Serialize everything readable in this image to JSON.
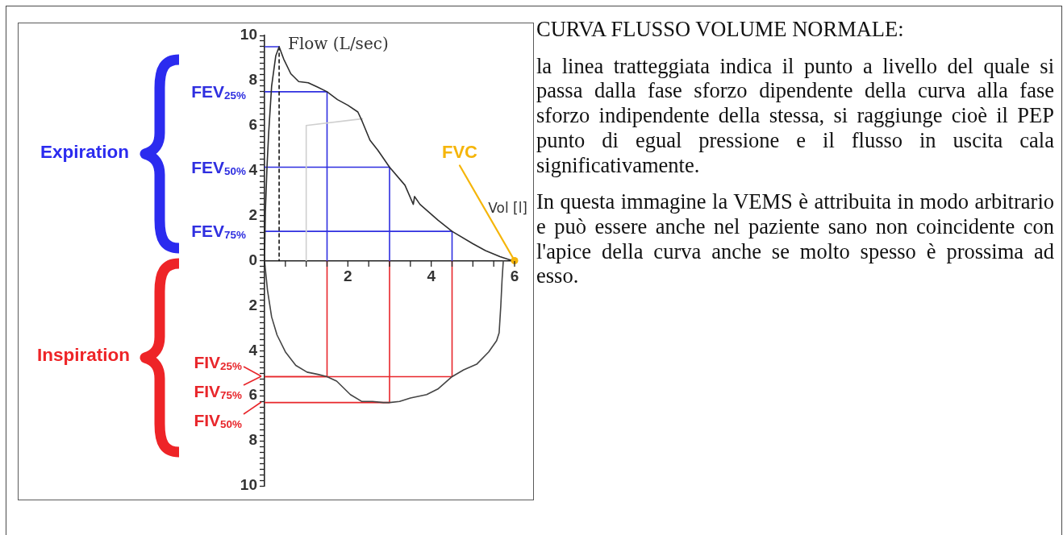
{
  "chart_data": {
    "type": "line",
    "title": "CURVA FLUSSO VOLUME NORMALE:",
    "xlabel": "Vol [l]",
    "ylabel": "Flow (L/sec)",
    "annotations": [
      "Expiration",
      "Inspiration",
      "la linea tratteggiata indica il punto a livello del quale si passa dalla fase sforzo dipendente della curva alla fase sforzo indipendente della stessa, si raggiunge cioè il PEP punto di egual pressione e il flusso in uscita cala significativamente.",
      "In questa immagine la VEMS è attribuita in modo arbitrario e può essere anche nel paziente sano non coincidente con l'apice della curva anche se molto spesso è prossima ad esso.",
      {
        "text": "FVC",
        "x": 6,
        "y": 0
      },
      "FIV$_{25%}$",
      "FIV$_{75%}$",
      "FIV$_{50%}$"
    ],
    "xlim": [
      0,
      6
    ],
    "xticks": [
      {
        "value": 0,
        "label": null
      },
      {
        "value": 0.5,
        "label": null
      },
      {
        "value": 1,
        "label": null
      },
      {
        "value": 1.5,
        "label": null
      },
      2,
      {
        "value": 2.5,
        "label": null
      },
      {
        "value": 3,
        "label": null
      },
      {
        "value": 3.5,
        "label": null
      },
      4,
      {
        "value": 4.5,
        "label": null
      },
      {
        "value": 5,
        "label": null
      },
      {
        "value": 5.5,
        "label": null
      },
      6
    ],
    "ylim": [
      -10,
      10
    ],
    "yticks": [
      {
        "value": -10,
        "label": "10"
      },
      {
        "value": -9.75,
        "label": null
      },
      {
        "value": -9.5,
        "label": null
      },
      {
        "value": -9.25,
        "label": null
      },
      {
        "value": -9,
        "label": null
      },
      {
        "value": -8.75,
        "label": null
      },
      {
        "value": -8.5,
        "label": null
      },
      {
        "value": -8.25,
        "label": null
      },
      {
        "value": -8,
        "label": "8"
      },
      {
        "value": -7.75,
        "label": null
      },
      {
        "value": -7.5,
        "label": null
      },
      {
        "value": -7.25,
        "label": null
      },
      {
        "value": -7,
        "label": null
      },
      {
        "value": -6.75,
        "label": null
      },
      {
        "value": -6.5,
        "label": null
      },
      {
        "value": -6.25,
        "label": null
      },
      {
        "value": -6,
        "label": "6"
      },
      {
        "value": -5.75,
        "label": null
      },
      {
        "value": -5.5,
        "label": null
      },
      {
        "value": -5.25,
        "label": null
      },
      {
        "value": -5,
        "label": null
      },
      {
        "value": -4.75,
        "label": null
      },
      {
        "value": -4.5,
        "label": null
      },
      {
        "value": -4.25,
        "label": null
      },
      {
        "value": -4,
        "label": "4"
      },
      {
        "value": -3.75,
        "label": null
      },
      {
        "value": -3.5,
        "label": null
      },
      {
        "value": -3.25,
        "label": null
      },
      {
        "value": -3,
        "label": null
      },
      {
        "value": -2.75,
        "label": null
      },
      {
        "value": -2.5,
        "label": null
      },
      {
        "value": -2.25,
        "label": null
      },
      {
        "value": -2,
        "label": "2"
      },
      {
        "value": -1.75,
        "label": null
      },
      {
        "value": -1.5,
        "label": null
      },
      {
        "value": -1.25,
        "label": null
      },
      {
        "value": -1,
        "label": null
      },
      {
        "value": -0.75,
        "label": null
      },
      {
        "value": -0.5,
        "label": null
      },
      {
        "value": -0.25,
        "label": null
      },
      0,
      {
        "value": 0.25,
        "label": null
      },
      {
        "value": 0.5,
        "label": null
      },
      {
        "value": 0.75,
        "label": null
      },
      {
        "value": 1,
        "label": null
      },
      {
        "value": 1.25,
        "label": null
      },
      {
        "value": 1.5,
        "label": null
      },
      {
        "value": 1.75,
        "label": null
      },
      2,
      {
        "value": 2.25,
        "label": null
      },
      {
        "value": 2.5,
        "label": null
      },
      {
        "value": 2.75,
        "label": null
      },
      {
        "value": 3,
        "label": null
      },
      {
        "value": 3.25,
        "label": null
      },
      {
        "value": 3.5,
        "label": null
      },
      {
        "value": 3.75,
        "label": null
      },
      4,
      {
        "value": 4.25,
        "label": null
      },
      {
        "value": 4.5,
        "label": null
      },
      {
        "value": 4.75,
        "label": null
      },
      {
        "value": 5,
        "label": null
      },
      {
        "value": 5.25,
        "label": null
      },
      {
        "value": 5.5,
        "label": null
      },
      {
        "value": 5.75,
        "label": null
      },
      6,
      {
        "value": 6.25,
        "label": null
      },
      {
        "value": 6.5,
        "label": null
      },
      {
        "value": 6.75,
        "label": null
      },
      {
        "value": 7,
        "label": null
      },
      {
        "value": 7.25,
        "label": null
      },
      {
        "value": 7.5,
        "label": null
      },
      {
        "value": 7.75,
        "label": null
      },
      8,
      {
        "value": 8.25,
        "label": null
      },
      {
        "value": 8.5,
        "label": null
      },
      {
        "value": 8.75,
        "label": null
      },
      {
        "value": 9,
        "label": null
      },
      {
        "value": 9.25,
        "label": null
      },
      {
        "value": 9.5,
        "label": null
      },
      {
        "value": 9.75,
        "label": null
      },
      10
    ],
    "marker": "none",
    "series": [
      {
        "color": "#2e2e2e",
        "x": [
          0,
          0.02,
          0.06,
          0.1,
          0.17,
          0.27,
          0.35,
          0.46,
          0.63,
          0.82,
          1.05,
          1.28,
          1.5,
          1.75,
          2,
          2.24,
          2.34,
          2.53,
          2.72,
          3,
          3.37,
          3.57,
          3.6,
          3.73,
          4.16,
          4.5,
          5,
          5.3,
          5.65,
          5.9,
          6
        ],
        "values": [
          0,
          2.2,
          4.2,
          5.7,
          7.75,
          9.1,
          9.5,
          8.95,
          8.3,
          7.95,
          7.9,
          7.7,
          7.5,
          7.15,
          6.9,
          6.6,
          6.2,
          5.35,
          4.9,
          4.15,
          3.35,
          2.5,
          2.85,
          2.5,
          1.8,
          1.3,
          0.75,
          0.45,
          0.18,
          0.03,
          0
        ]
      },
      {
        "color": "#444444",
        "x": [
          0,
          0.07,
          0.17,
          0.3,
          0.5,
          0.75,
          1.02,
          1.28,
          1.5,
          1.73,
          2.06,
          2.33,
          2.59,
          2.85,
          3,
          3.24,
          3.5,
          3.89,
          4.16,
          4.5,
          4.78,
          5.09,
          5.38,
          5.57,
          5.63,
          5.67,
          5.7,
          5.73
        ],
        "values": [
          0,
          -1.3,
          -2.5,
          -3.3,
          -4.05,
          -4.65,
          -4.95,
          -5.05,
          -5.15,
          -5.35,
          -5.95,
          -6.25,
          -6.25,
          -6.3,
          -6.3,
          -6.25,
          -6.1,
          -5.95,
          -5.7,
          -5.15,
          -4.85,
          -4.6,
          -4.05,
          -3.55,
          -3.2,
          -2,
          -0.85,
          0
        ]
      },
      {
        "color": "#2f2fe0",
        "x": [
          0,
          0.35
        ],
        "values": [
          9.5,
          9.5
        ]
      },
      {
        "color": "#111111",
        "line_style": "dashed",
        "x": [
          0.35,
          0.35
        ],
        "values": [
          9.5,
          0
        ]
      },
      {
        "color": "#cfcfcf",
        "x": [
          1,
          1,
          2.35
        ],
        "values": [
          0,
          6,
          6.3
        ]
      },
      {
        "name": "FEV$_{25%}$",
        "color": "#2f2fe0",
        "x": [
          0,
          1.5,
          1.5
        ],
        "values": [
          7.5,
          7.5,
          0
        ]
      },
      {
        "name": "FEV$_{50%}$",
        "color": "#2f2fe0",
        "x": [
          0,
          3,
          3
        ],
        "values": [
          4.15,
          4.15,
          0
        ]
      },
      {
        "name": "FEV$_{75%}$",
        "color": "#2f2fe0",
        "x": [
          0,
          4.5,
          4.5
        ],
        "values": [
          1.3,
          1.3,
          0
        ]
      },
      {
        "color": "#e8262b",
        "x": [
          0,
          1.5,
          1.5
        ],
        "values": [
          -5.15,
          -5.15,
          0
        ]
      },
      {
        "color": "#e8262b",
        "x": [
          0,
          4.5,
          4.5
        ],
        "values": [
          -5.15,
          -5.15,
          0
        ]
      },
      {
        "color": "#e8262b",
        "x": [
          0,
          3,
          3
        ],
        "values": [
          -6.3,
          -6.3,
          0
        ]
      }
    ]
  }
}
